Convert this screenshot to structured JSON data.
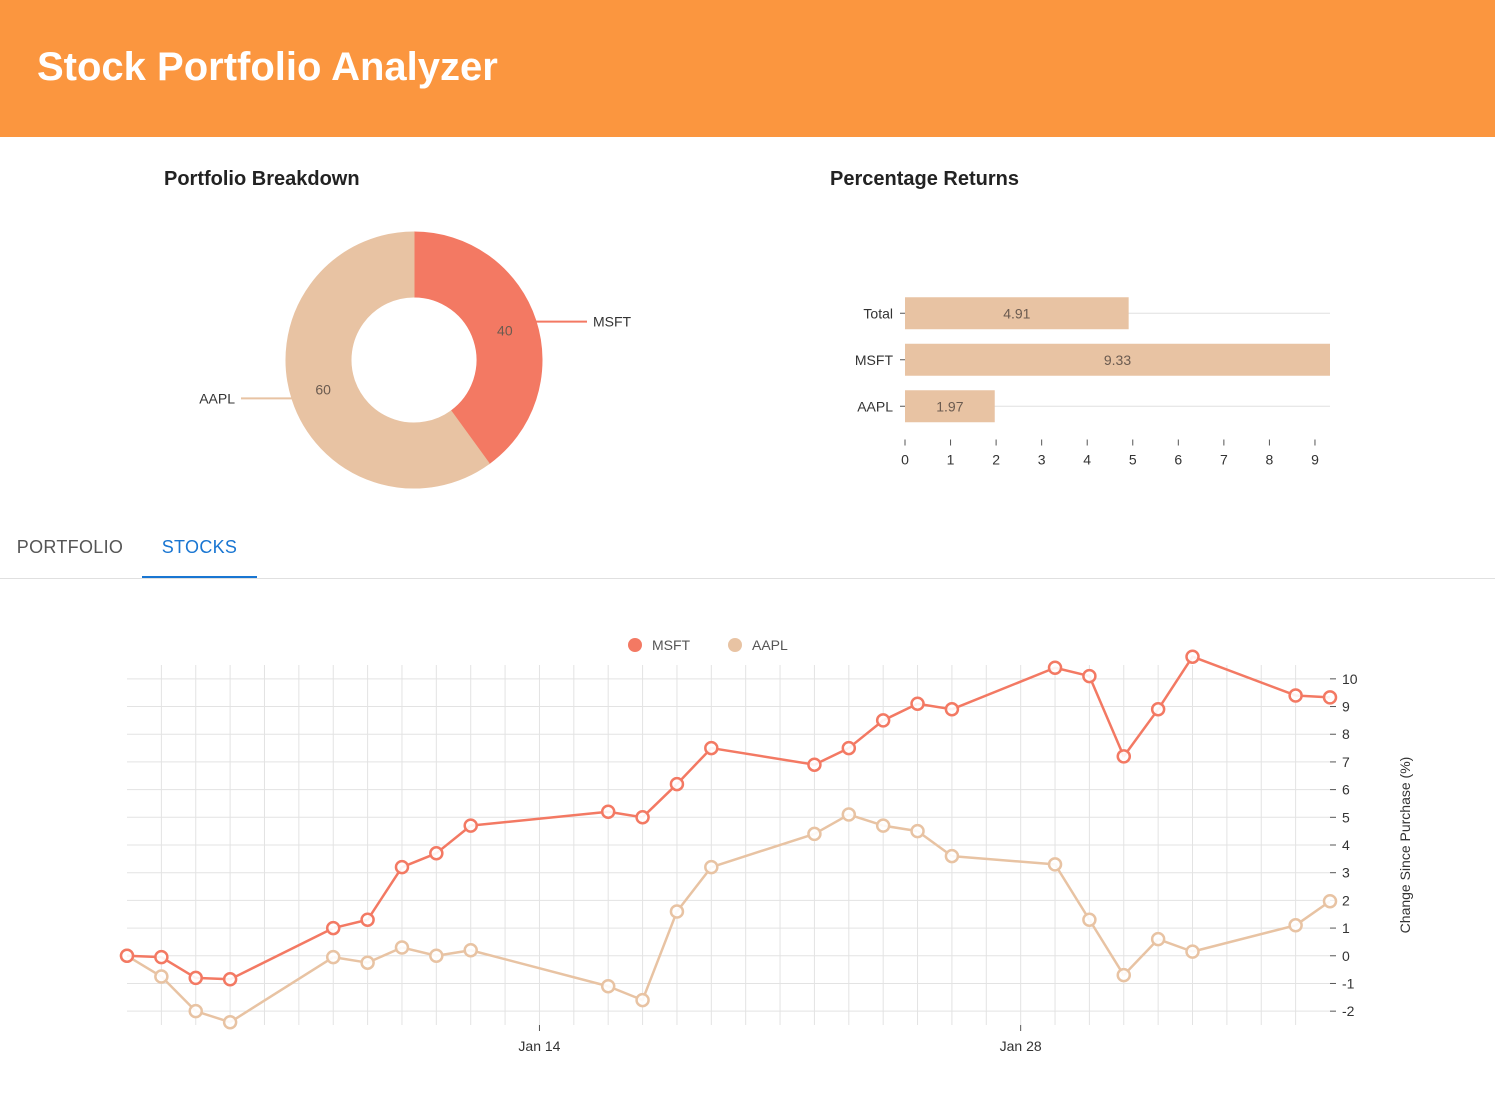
{
  "header": {
    "title": "Stock Portfolio Analyzer"
  },
  "colors": {
    "header_bg": "#fb963f",
    "msft": "#f37963",
    "aapl": "#e8c3a3",
    "tab_active": "#1976d2"
  },
  "breakdown": {
    "title": "Portfolio Breakdown"
  },
  "returns": {
    "title": "Percentage Returns"
  },
  "tabs": [
    {
      "label": "PORTFOLIO",
      "active": false
    },
    {
      "label": "STOCKS",
      "active": true
    }
  ],
  "chart_data": [
    {
      "type": "pie",
      "title": "Portfolio Breakdown",
      "style": "donut",
      "slices": [
        {
          "label": "MSFT",
          "value": 40,
          "color": "#f37963"
        },
        {
          "label": "AAPL",
          "value": 60,
          "color": "#e8c3a3"
        }
      ]
    },
    {
      "type": "bar",
      "orientation": "horizontal",
      "title": "Percentage Returns",
      "categories": [
        "Total",
        "MSFT",
        "AAPL"
      ],
      "values": [
        4.91,
        9.33,
        1.97
      ],
      "xlim": [
        0,
        9.33
      ],
      "ticks": [
        0,
        1,
        2,
        3,
        4,
        5,
        6,
        7,
        8,
        9
      ],
      "grid": true,
      "color": "#e8c3a3"
    },
    {
      "type": "line",
      "ylabel": "Change Since Purchase (%)",
      "ylim": [
        -2.5,
        10.5
      ],
      "yticks": [
        -2,
        -1,
        0,
        1,
        2,
        3,
        4,
        5,
        6,
        7,
        8,
        9,
        10
      ],
      "xlim": [
        "2018-01-02",
        "2018-02-06"
      ],
      "xticks": [
        {
          "date": "2018-01-14",
          "label": "Jan 14"
        },
        {
          "date": "2018-01-28",
          "label": "Jan 28"
        }
      ],
      "legend": "top-center",
      "grid": true,
      "x": [
        "2018-01-02",
        "2018-01-03",
        "2018-01-04",
        "2018-01-05",
        "2018-01-08",
        "2018-01-09",
        "2018-01-10",
        "2018-01-11",
        "2018-01-12",
        "2018-01-16",
        "2018-01-17",
        "2018-01-18",
        "2018-01-19",
        "2018-01-22",
        "2018-01-23",
        "2018-01-24",
        "2018-01-25",
        "2018-01-26",
        "2018-01-29",
        "2018-01-30",
        "2018-01-31",
        "2018-02-01",
        "2018-02-02",
        "2018-02-05",
        "2018-02-06"
      ],
      "series": [
        {
          "name": "MSFT",
          "color": "#f37963",
          "values": [
            0,
            -0.05,
            -0.8,
            -0.85,
            1.0,
            1.3,
            3.2,
            3.7,
            4.7,
            5.2,
            5.0,
            6.2,
            7.5,
            6.9,
            7.5,
            8.5,
            9.1,
            8.9,
            10.4,
            10.1,
            7.2,
            8.9,
            10.8,
            9.4,
            9.33
          ]
        },
        {
          "name": "AAPL",
          "color": "#e8c3a3",
          "values": [
            0,
            -0.75,
            -2.0,
            -2.4,
            -0.05,
            -0.25,
            0.3,
            0.0,
            0.2,
            -1.1,
            -1.6,
            1.6,
            3.2,
            4.4,
            5.1,
            4.7,
            4.5,
            3.6,
            3.3,
            1.3,
            -0.7,
            0.6,
            0.15,
            1.1,
            1.97
          ]
        }
      ]
    }
  ]
}
